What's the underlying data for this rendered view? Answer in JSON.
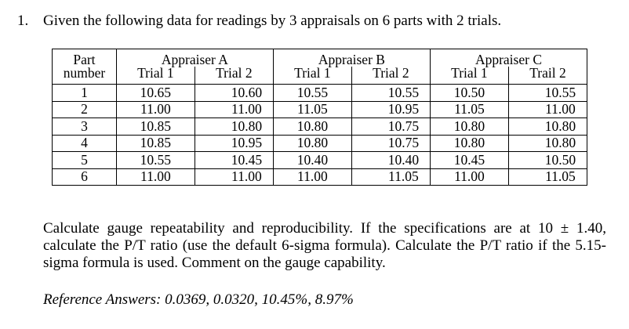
{
  "question": {
    "number": "1.",
    "text": "Given the following data for readings by 3 appraisals on 6 parts with 2 trials."
  },
  "table": {
    "part_header": [
      "Part",
      "number"
    ],
    "appraisers": [
      {
        "name": "Appraiser A",
        "trials": [
          "Trial 1",
          "Trial 2"
        ]
      },
      {
        "name": "Appraiser B",
        "trials": [
          "Trial 1",
          "Trial 2"
        ]
      },
      {
        "name": "Appraiser C",
        "trials": [
          "Trial 1",
          "Trail 2"
        ]
      }
    ],
    "rows": [
      {
        "part": "1",
        "values": [
          "10.65",
          "10.60",
          "10.55",
          "10.55",
          "10.50",
          "10.55"
        ]
      },
      {
        "part": "2",
        "values": [
          "11.00",
          "11.00",
          "11.05",
          "10.95",
          "11.05",
          "11.00"
        ]
      },
      {
        "part": "3",
        "values": [
          "10.85",
          "10.80",
          "10.80",
          "10.75",
          "10.80",
          "10.80"
        ]
      },
      {
        "part": "4",
        "values": [
          "10.85",
          "10.95",
          "10.80",
          "10.75",
          "10.80",
          "10.80"
        ]
      },
      {
        "part": "5",
        "values": [
          "10.55",
          "10.45",
          "10.40",
          "10.40",
          "10.45",
          "10.50"
        ]
      },
      {
        "part": "6",
        "values": [
          "11.00",
          "11.00",
          "11.00",
          "11.05",
          "11.00",
          "11.05"
        ]
      }
    ]
  },
  "instructions": "Calculate gauge repeatability and reproducibility. If the specifications are at 10 ± 1.40, calculate the P/T ratio (use the default 6-sigma formula). Calculate the P/T ratio if the 5.15-sigma formula is used. Comment on the gauge capability.",
  "reference_answers": "Reference Answers:  0.0369, 0.0320, 10.45%, 8.97%"
}
